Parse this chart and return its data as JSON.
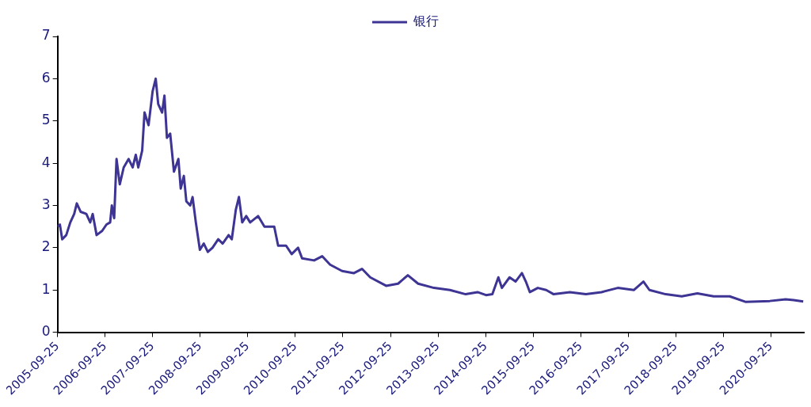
{
  "chart_data": {
    "type": "line",
    "legend": "top",
    "grid": false,
    "marker": "none",
    "line_style": "solid",
    "xlim": [
      "2005-09-25",
      "2021-06-10"
    ],
    "xticks": [
      "2005-09-25",
      "2006-09-25",
      "2007-09-25",
      "2008-09-25",
      "2009-09-25",
      "2010-09-25",
      "2011-09-25",
      "2012-09-25",
      "2013-09-25",
      "2014-09-25",
      "2015-09-25",
      "2016-09-25",
      "2017-09-25",
      "2018-09-25",
      "2019-09-25",
      "2020-09-25"
    ],
    "ylim": [
      0,
      7
    ],
    "yticks": [
      0,
      1,
      2,
      3,
      4,
      5,
      6,
      7
    ],
    "x": [
      "2005-09-25",
      "2005-10-13",
      "2005-10-31",
      "2005-12-01",
      "2006-01-01",
      "2006-01-31",
      "2006-02-20",
      "2006-03-22",
      "2006-05-04",
      "2006-06-03",
      "2006-06-22",
      "2006-07-22",
      "2006-09-03",
      "2006-10-06",
      "2006-11-03",
      "2006-11-16",
      "2006-12-04",
      "2006-12-22",
      "2007-01-16",
      "2007-02-15",
      "2007-03-25",
      "2007-04-25",
      "2007-05-19",
      "2007-06-07",
      "2007-07-07",
      "2007-07-25",
      "2007-08-25",
      "2007-09-25",
      "2007-10-19",
      "2007-11-07",
      "2007-12-07",
      "2007-12-25",
      "2008-01-13",
      "2008-02-07",
      "2008-03-07",
      "2008-04-10",
      "2008-04-28",
      "2008-05-22",
      "2008-06-10",
      "2008-07-10",
      "2008-07-28",
      "2008-08-22",
      "2008-09-22",
      "2008-10-22",
      "2008-11-22",
      "2008-12-28",
      "2009-02-10",
      "2009-03-16",
      "2009-05-01",
      "2009-05-25",
      "2009-06-25",
      "2009-07-19",
      "2009-08-13",
      "2009-09-13",
      "2009-10-13",
      "2009-12-13",
      "2010-01-31",
      "2010-04-16",
      "2010-05-16",
      "2010-07-16",
      "2010-08-28",
      "2010-10-16",
      "2010-11-16",
      "2011-02-16",
      "2011-04-19",
      "2011-06-19",
      "2011-09-19",
      "2011-12-19",
      "2012-02-19",
      "2012-04-22",
      "2012-08-22",
      "2012-11-22",
      "2013-02-05",
      "2013-04-25",
      "2013-08-25",
      "2013-12-25",
      "2014-04-25",
      "2014-07-25",
      "2014-09-28",
      "2014-11-16",
      "2015-01-01",
      "2015-01-28",
      "2015-03-28",
      "2015-05-13",
      "2015-07-01",
      "2015-07-31",
      "2015-08-31",
      "2015-10-31",
      "2016-01-03",
      "2016-03-01",
      "2016-07-03",
      "2016-11-03",
      "2017-03-03",
      "2017-07-06",
      "2017-11-06",
      "2018-01-19",
      "2018-03-06",
      "2018-07-09",
      "2018-11-09",
      "2019-03-09",
      "2019-07-12",
      "2019-11-12",
      "2020-03-12",
      "2020-09-15",
      "2021-01-15",
      "2021-03-18",
      "2021-05-30"
    ],
    "series": [
      {
        "name": "银行",
        "color": "#3d3494",
        "values": [
          2.5,
          2.55,
          2.2,
          2.3,
          2.6,
          2.8,
          3.05,
          2.85,
          2.8,
          2.6,
          2.8,
          2.3,
          2.4,
          2.55,
          2.6,
          3.0,
          2.7,
          4.1,
          3.5,
          3.9,
          4.1,
          3.9,
          4.2,
          3.9,
          4.3,
          5.2,
          4.9,
          5.7,
          6.0,
          5.4,
          5.2,
          5.6,
          4.6,
          4.7,
          3.8,
          4.1,
          3.4,
          3.7,
          3.1,
          3.0,
          3.2,
          2.6,
          1.95,
          2.1,
          1.9,
          2.0,
          2.2,
          2.1,
          2.3,
          2.2,
          2.9,
          3.2,
          2.6,
          2.75,
          2.6,
          2.75,
          2.5,
          2.5,
          2.05,
          2.05,
          1.85,
          2.0,
          1.75,
          1.7,
          1.8,
          1.6,
          1.45,
          1.4,
          1.5,
          1.3,
          1.1,
          1.15,
          1.35,
          1.15,
          1.05,
          1.0,
          0.9,
          0.95,
          0.88,
          0.9,
          1.3,
          1.05,
          1.3,
          1.2,
          1.4,
          1.2,
          0.95,
          1.05,
          1.0,
          0.9,
          0.95,
          0.9,
          0.95,
          1.05,
          1.0,
          1.2,
          1.0,
          0.9,
          0.85,
          0.92,
          0.85,
          0.85,
          0.72,
          0.74,
          0.78,
          0.76,
          0.73
        ]
      }
    ]
  }
}
